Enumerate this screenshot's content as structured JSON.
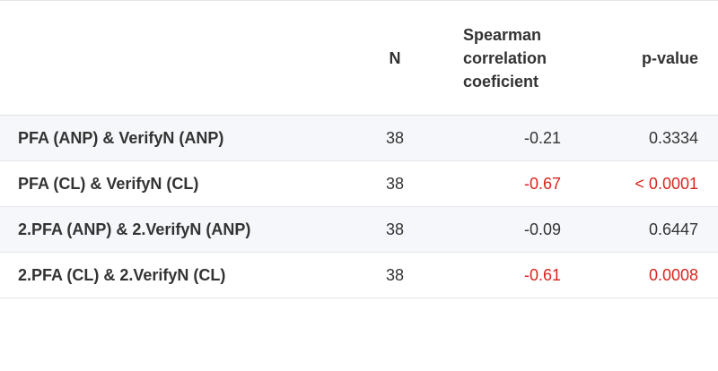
{
  "table": {
    "columns": [
      "N",
      "Spearman correlation coeficient",
      "p-value"
    ],
    "rows": [
      {
        "label": "PFA (ANP) & VerifyN (ANP)",
        "n": 38,
        "rho": -0.21,
        "p": 0.3334,
        "color": "#333333"
      },
      {
        "label": "PFA (CL) & VerifyN (CL)",
        "n": 38,
        "rho": -0.67,
        "p": "< 0.0001",
        "color": "#d9251c"
      },
      {
        "label": "2.PFA (ANP) & 2.VerifyN (ANP)",
        "n": 38,
        "rho": -0.09,
        "p": 0.6447,
        "color": "#333333"
      },
      {
        "label": "2.PFA (CL) & 2.VerifyN (CL)",
        "n": 38,
        "rho": -0.61,
        "p": 0.0008,
        "color": "#d9251c"
      }
    ]
  }
}
